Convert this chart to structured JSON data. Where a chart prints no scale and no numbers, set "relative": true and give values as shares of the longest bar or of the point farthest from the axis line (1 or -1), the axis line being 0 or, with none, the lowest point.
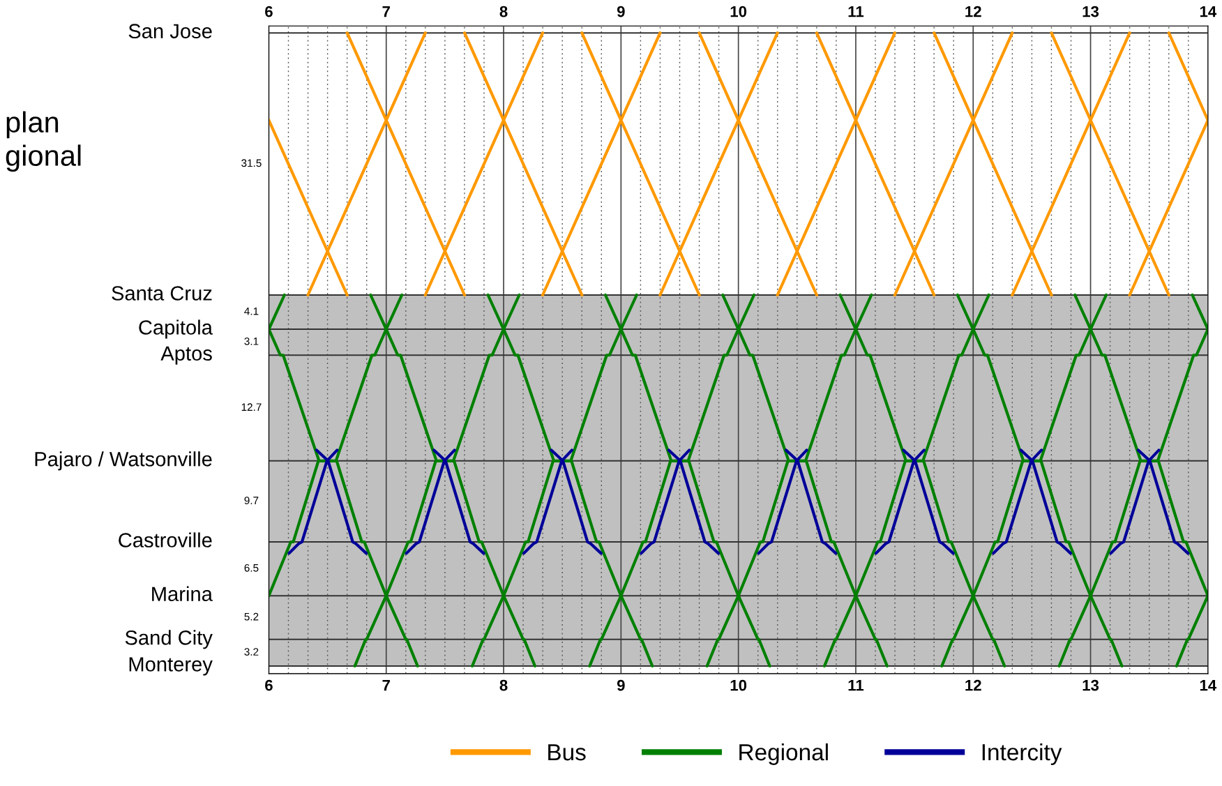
{
  "chart_data": {
    "type": "line",
    "title": "plan\ngional",
    "relative": true,
    "xlim": [
      6,
      14
    ],
    "xticks": [
      6,
      7,
      8,
      9,
      10,
      11,
      12,
      13,
      14
    ],
    "x2lim": [
      6,
      14
    ],
    "x2ticks": [
      6,
      7,
      8,
      9,
      10,
      11,
      12,
      13,
      14
    ],
    "ref_lines": [
      {
        "axis": "y",
        "value": 1,
        "label": "San Jose",
        "color": "#333333"
      },
      {
        "axis": "y",
        "value": 0.586,
        "label": "Santa Cruz",
        "color": "#333333"
      },
      {
        "axis": "y",
        "value": 0.532,
        "label": "Capitola",
        "color": "#333333"
      },
      {
        "axis": "y",
        "value": 0.491,
        "label": "Aptos",
        "color": "#333333"
      },
      {
        "axis": "y",
        "value": 0.324,
        "label": "Pajaro / Watsonville",
        "color": "#333333"
      },
      {
        "axis": "y",
        "value": 0.196,
        "label": "Castroville",
        "color": "#333333"
      },
      {
        "axis": "y",
        "value": 0.111,
        "label": "Marina",
        "color": "#333333"
      },
      {
        "axis": "y",
        "value": 0.042,
        "label": "Sand City",
        "color": "#333333"
      },
      {
        "axis": "y",
        "value": 0,
        "label": "Monterey",
        "color": "#333333"
      }
    ],
    "annotations": [
      "31.5",
      "4.1",
      "3.1",
      "12.7",
      "9.7",
      "6.5",
      "5.2",
      "3.2"
    ],
    "bands": [
      {
        "axis": "y",
        "from": 0,
        "to": 0.586,
        "color": "#c0c0c0"
      }
    ],
    "grid": "x",
    "legend": "bottom",
    "line_style": "solid",
    "marker": "none",
    "series": [
      {
        "name": "Bus",
        "color": "#ff9900",
        "x": [
          6,
          6.667,
          null,
          6.667,
          7.667,
          null,
          7.667,
          8.667,
          null,
          8.667,
          9.667,
          null,
          9.667,
          10.667,
          null,
          10.667,
          11.667,
          null,
          11.667,
          12.667,
          null,
          12.667,
          13.667,
          null,
          13.667,
          14,
          null,
          6.333,
          7.333,
          null,
          7.333,
          8.333,
          null,
          8.333,
          9.333,
          null,
          9.333,
          10.333,
          null,
          10.333,
          11.333,
          null,
          11.333,
          12.333,
          null,
          12.333,
          13.333,
          null,
          13.333,
          14
        ],
        "values": [
          0.862,
          0.586,
          null,
          1,
          0.586,
          null,
          1,
          0.586,
          null,
          1,
          0.586,
          null,
          1,
          0.586,
          null,
          1,
          0.586,
          null,
          1,
          0.586,
          null,
          1,
          0.586,
          null,
          1,
          0.862,
          null,
          0.586,
          1,
          null,
          0.586,
          1,
          null,
          0.586,
          1,
          null,
          0.586,
          1,
          null,
          0.586,
          1,
          null,
          0.586,
          1,
          null,
          0.586,
          1,
          null,
          0.586,
          0.862
        ]
      },
      {
        "name": "Regional",
        "color": "#008000",
        "x": [
          6,
          6.133,
          null,
          6,
          6.187,
          6.208,
          6.422,
          6.572,
          6.878,
          6.902,
          7,
          7.133,
          null,
          6.733,
          6.825,
          6.833,
          7,
          7.187,
          7.208,
          7.422,
          7.572,
          7.878,
          7.902,
          8,
          8.133,
          null,
          7.733,
          7.825,
          7.833,
          8,
          8.187,
          8.208,
          8.422,
          8.572,
          8.878,
          8.902,
          9,
          9.133,
          null,
          8.733,
          8.825,
          8.833,
          9,
          9.187,
          9.208,
          9.422,
          9.572,
          9.878,
          9.902,
          10,
          10.133,
          null,
          9.733,
          9.825,
          9.833,
          10,
          10.187,
          10.208,
          10.422,
          10.572,
          10.878,
          10.902,
          11,
          11.133,
          null,
          10.733,
          10.825,
          10.833,
          11,
          11.187,
          11.208,
          11.422,
          11.572,
          11.878,
          11.902,
          12,
          12.133,
          null,
          11.733,
          11.825,
          11.833,
          12,
          12.187,
          12.208,
          12.422,
          12.572,
          12.878,
          12.902,
          13,
          13.133,
          null,
          12.733,
          12.825,
          12.833,
          13,
          13.187,
          13.208,
          13.422,
          13.572,
          13.878,
          13.902,
          14,
          null,
          13.733,
          13.825,
          13.833,
          14,
          null,
          6,
          6.098,
          6.122,
          6.428,
          6.578,
          6.792,
          6.813,
          7,
          7.167,
          7.175,
          7.267,
          null,
          6.867,
          7,
          7.098,
          7.122,
          7.428,
          7.578,
          7.792,
          7.813,
          8,
          8.167,
          8.175,
          8.267,
          null,
          7.867,
          8,
          8.098,
          8.122,
          8.428,
          8.578,
          8.792,
          8.813,
          9,
          9.167,
          9.175,
          9.267,
          null,
          8.867,
          9,
          9.098,
          9.122,
          9.428,
          9.578,
          9.792,
          9.813,
          10,
          10.167,
          10.175,
          10.267,
          null,
          9.867,
          10,
          10.098,
          10.122,
          10.428,
          10.578,
          10.792,
          10.813,
          11,
          11.167,
          11.175,
          11.267,
          null,
          10.867,
          11,
          11.098,
          11.122,
          11.428,
          11.578,
          11.792,
          11.813,
          12,
          12.167,
          12.175,
          12.267,
          null,
          11.867,
          12,
          12.098,
          12.122,
          12.428,
          12.578,
          12.792,
          12.813,
          13,
          13.167,
          13.175,
          13.267,
          null,
          12.867,
          13,
          13.098,
          13.122,
          13.428,
          13.578,
          13.792,
          13.813,
          14,
          null,
          13.867,
          14
        ],
        "values": [
          0.532,
          0.586,
          null,
          0.111,
          0.196,
          0.196,
          0.324,
          0.324,
          0.491,
          0.491,
          0.532,
          0.586,
          null,
          0,
          0.042,
          0.042,
          0.111,
          0.196,
          0.196,
          0.324,
          0.324,
          0.491,
          0.491,
          0.532,
          0.586,
          null,
          0,
          0.042,
          0.042,
          0.111,
          0.196,
          0.196,
          0.324,
          0.324,
          0.491,
          0.491,
          0.532,
          0.586,
          null,
          0,
          0.042,
          0.042,
          0.111,
          0.196,
          0.196,
          0.324,
          0.324,
          0.491,
          0.491,
          0.532,
          0.586,
          null,
          0,
          0.042,
          0.042,
          0.111,
          0.196,
          0.196,
          0.324,
          0.324,
          0.491,
          0.491,
          0.532,
          0.586,
          null,
          0,
          0.042,
          0.042,
          0.111,
          0.196,
          0.196,
          0.324,
          0.324,
          0.491,
          0.491,
          0.532,
          0.586,
          null,
          0,
          0.042,
          0.042,
          0.111,
          0.196,
          0.196,
          0.324,
          0.324,
          0.491,
          0.491,
          0.532,
          0.586,
          null,
          0,
          0.042,
          0.042,
          0.111,
          0.196,
          0.196,
          0.324,
          0.324,
          0.491,
          0.491,
          0.532,
          null,
          0,
          0.042,
          0.042,
          0.111,
          null,
          0.532,
          0.491,
          0.491,
          0.324,
          0.324,
          0.196,
          0.196,
          0.111,
          0.042,
          0.042,
          0,
          null,
          0.586,
          0.532,
          0.491,
          0.491,
          0.324,
          0.324,
          0.196,
          0.196,
          0.111,
          0.042,
          0.042,
          0,
          null,
          0.586,
          0.532,
          0.491,
          0.491,
          0.324,
          0.324,
          0.196,
          0.196,
          0.111,
          0.042,
          0.042,
          0,
          null,
          0.586,
          0.532,
          0.491,
          0.491,
          0.324,
          0.324,
          0.196,
          0.196,
          0.111,
          0.042,
          0.042,
          0,
          null,
          0.586,
          0.532,
          0.491,
          0.491,
          0.324,
          0.324,
          0.196,
          0.196,
          0.111,
          0.042,
          0.042,
          0,
          null,
          0.586,
          0.532,
          0.491,
          0.491,
          0.324,
          0.324,
          0.196,
          0.196,
          0.111,
          0.042,
          0.042,
          0,
          null,
          0.586,
          0.532,
          0.491,
          0.491,
          0.324,
          0.324,
          0.196,
          0.196,
          0.111,
          0.042,
          0.042,
          0,
          null,
          0.586,
          0.532,
          0.491,
          0.491,
          0.324,
          0.324,
          0.196,
          0.196,
          0.111,
          null,
          0.586,
          0.532
        ]
      },
      {
        "name": "Intercity",
        "color": "#000099",
        "x": [
          6.172,
          6.253,
          6.282,
          6.495,
          6.582,
          null,
          6.407,
          6.505,
          6.715,
          6.743,
          6.83,
          null,
          7.172,
          7.253,
          7.282,
          7.495,
          7.582,
          null,
          7.407,
          7.505,
          7.715,
          7.743,
          7.83,
          null,
          8.172,
          8.253,
          8.282,
          8.495,
          8.582,
          null,
          8.407,
          8.505,
          8.715,
          8.743,
          8.83,
          null,
          9.172,
          9.253,
          9.282,
          9.495,
          9.582,
          null,
          9.407,
          9.505,
          9.715,
          9.743,
          9.83,
          null,
          10.172,
          10.253,
          10.282,
          10.495,
          10.582,
          null,
          10.407,
          10.505,
          10.715,
          10.743,
          10.83,
          null,
          11.172,
          11.253,
          11.282,
          11.495,
          11.582,
          null,
          11.407,
          11.505,
          11.715,
          11.743,
          11.83,
          null,
          12.172,
          12.253,
          12.282,
          12.495,
          12.582,
          null,
          12.407,
          12.505,
          12.715,
          12.743,
          12.83,
          null,
          13.172,
          13.253,
          13.282,
          13.495,
          13.582,
          null,
          13.407,
          13.505,
          13.715,
          13.743,
          13.83
        ],
        "values": [
          0.178,
          0.193,
          0.196,
          0.324,
          0.341,
          null,
          0.341,
          0.324,
          0.196,
          0.193,
          0.178,
          null,
          0.178,
          0.193,
          0.196,
          0.324,
          0.341,
          null,
          0.341,
          0.324,
          0.196,
          0.193,
          0.178,
          null,
          0.178,
          0.193,
          0.196,
          0.324,
          0.341,
          null,
          0.341,
          0.324,
          0.196,
          0.193,
          0.178,
          null,
          0.178,
          0.193,
          0.196,
          0.324,
          0.341,
          null,
          0.341,
          0.324,
          0.196,
          0.193,
          0.178,
          null,
          0.178,
          0.193,
          0.196,
          0.324,
          0.341,
          null,
          0.341,
          0.324,
          0.196,
          0.193,
          0.178,
          null,
          0.178,
          0.193,
          0.196,
          0.324,
          0.341,
          null,
          0.341,
          0.324,
          0.196,
          0.193,
          0.178,
          null,
          0.178,
          0.193,
          0.196,
          0.324,
          0.341,
          null,
          0.341,
          0.324,
          0.196,
          0.193,
          0.178,
          null,
          0.178,
          0.193,
          0.196,
          0.324,
          0.341,
          null,
          0.341,
          0.324,
          0.196,
          0.193,
          0.178
        ]
      }
    ]
  }
}
